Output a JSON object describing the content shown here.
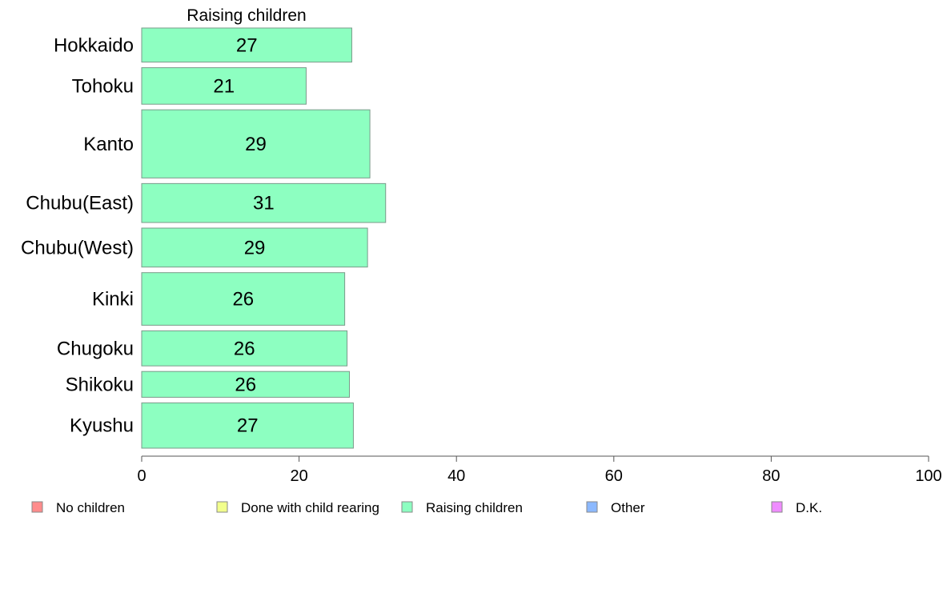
{
  "chart_data": {
    "type": "bar",
    "orientation": "horizontal",
    "title": "Raising children",
    "categories": [
      "Hokkaido",
      "Tohoku",
      "Kanto",
      "Chubu(East)",
      "Chubu(West)",
      "Kinki",
      "Chugoku",
      "Shikoku",
      "Kyushu"
    ],
    "category_weights": [
      0.7,
      0.75,
      1.4,
      0.8,
      0.8,
      1.08,
      0.72,
      0.53,
      0.93
    ],
    "series": [
      {
        "name": "Raising children",
        "color": "#8dffc1",
        "values": [
          26.7,
          20.9,
          29.0,
          31.0,
          28.7,
          25.8,
          26.1,
          26.4,
          26.9
        ],
        "labels": [
          "27",
          "21",
          "29",
          "31",
          "29",
          "26",
          "26",
          "26",
          "27"
        ]
      }
    ],
    "xlim": [
      0,
      100
    ],
    "xticks": [
      "0",
      "20",
      "40",
      "60",
      "80",
      "100"
    ],
    "xtick_values": [
      0,
      20,
      40,
      60,
      80,
      100
    ],
    "xlabel": "",
    "ylabel": "",
    "grid": false,
    "legend": {
      "position": "bottom",
      "items": [
        {
          "name": "No children",
          "color": "#ff8c8c"
        },
        {
          "name": "Done with child rearing",
          "color": "#f2ff8c"
        },
        {
          "name": "Raising children",
          "color": "#8dffc1"
        },
        {
          "name": "Other",
          "color": "#8cb9ff"
        },
        {
          "name": "D.K.",
          "color": "#ef8cff"
        }
      ]
    }
  }
}
